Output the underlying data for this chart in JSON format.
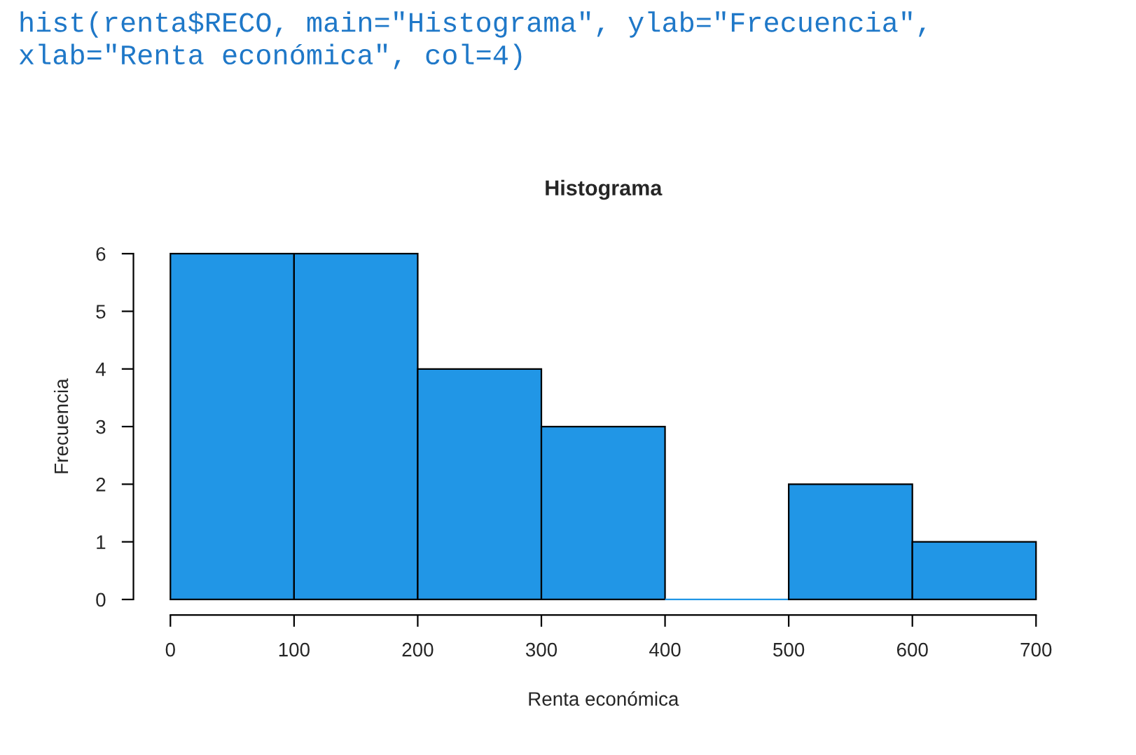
{
  "chart_data": {
    "type": "histogram",
    "title": "Histograma",
    "xlabel": "Renta económica",
    "ylabel": "Frecuencia",
    "bins": [
      0,
      100,
      200,
      300,
      400,
      500,
      600,
      700
    ],
    "values": [
      6,
      6,
      4,
      3,
      0,
      2,
      1
    ],
    "color": "#2196e6",
    "xlim": [
      0,
      700
    ],
    "ylim": [
      0,
      6
    ],
    "xticks": [
      0,
      100,
      200,
      300,
      400,
      500,
      600,
      700
    ],
    "yticks": [
      0,
      1,
      2,
      3,
      4,
      5,
      6
    ],
    "grid": false,
    "legend": false,
    "annotations": [
      "hist(renta$RECO, main=\"Histograma\", ylab=\"Frecuencia\", xlab=\"Renta económica\", col=4)"
    ]
  }
}
